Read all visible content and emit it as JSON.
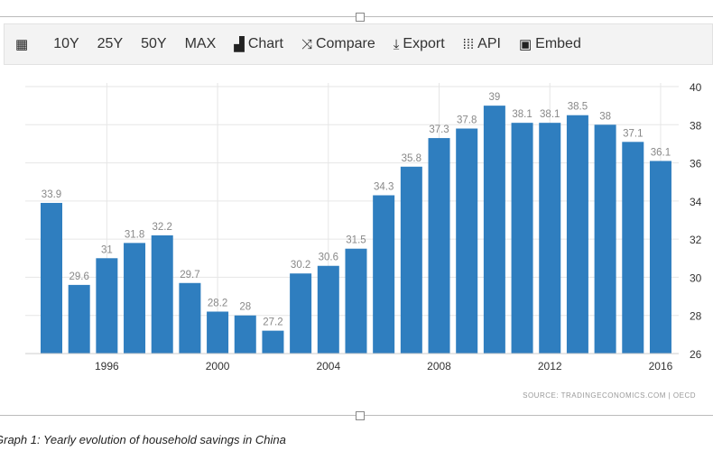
{
  "toolbar": {
    "items": [
      {
        "label": "",
        "icon": "calendar-icon"
      },
      {
        "label": "10Y"
      },
      {
        "label": "25Y"
      },
      {
        "label": "50Y"
      },
      {
        "label": "MAX"
      },
      {
        "label": "Chart",
        "icon": "bar-chart-icon"
      },
      {
        "label": "Compare",
        "icon": "shuffle-icon"
      },
      {
        "label": "Export",
        "icon": "download-icon"
      },
      {
        "label": "API",
        "icon": "grid-icon"
      },
      {
        "label": "Embed",
        "icon": "image-icon"
      }
    ]
  },
  "chart_data": {
    "type": "bar",
    "categories": [
      "1994",
      "1995",
      "1996",
      "1997",
      "1998",
      "1999",
      "2000",
      "2001",
      "2002",
      "2003",
      "2004",
      "2005",
      "2006",
      "2007",
      "2008",
      "2009",
      "2010",
      "2011",
      "2012",
      "2013",
      "2014",
      "2015",
      "2016"
    ],
    "values": [
      33.9,
      29.6,
      31,
      31.8,
      32.2,
      29.7,
      28.2,
      28,
      27.2,
      30.2,
      30.6,
      31.5,
      34.3,
      35.8,
      37.3,
      37.8,
      39,
      38.1,
      38.1,
      38.5,
      38,
      37.1,
      36.1
    ],
    "x_tick_labels": [
      "1996",
      "2000",
      "2004",
      "2008",
      "2012",
      "2016"
    ],
    "y_tick_labels": [
      "26",
      "28",
      "30",
      "32",
      "34",
      "36",
      "38",
      "40"
    ],
    "ylim": [
      26,
      40
    ],
    "y_axis_position": "right",
    "grid": true,
    "bar_color": "#2f7ebf",
    "source": "SOURCE: TRADINGECONOMICS.COM | OECD"
  },
  "caption": "Graph 1: Yearly evolution of household savings in China"
}
